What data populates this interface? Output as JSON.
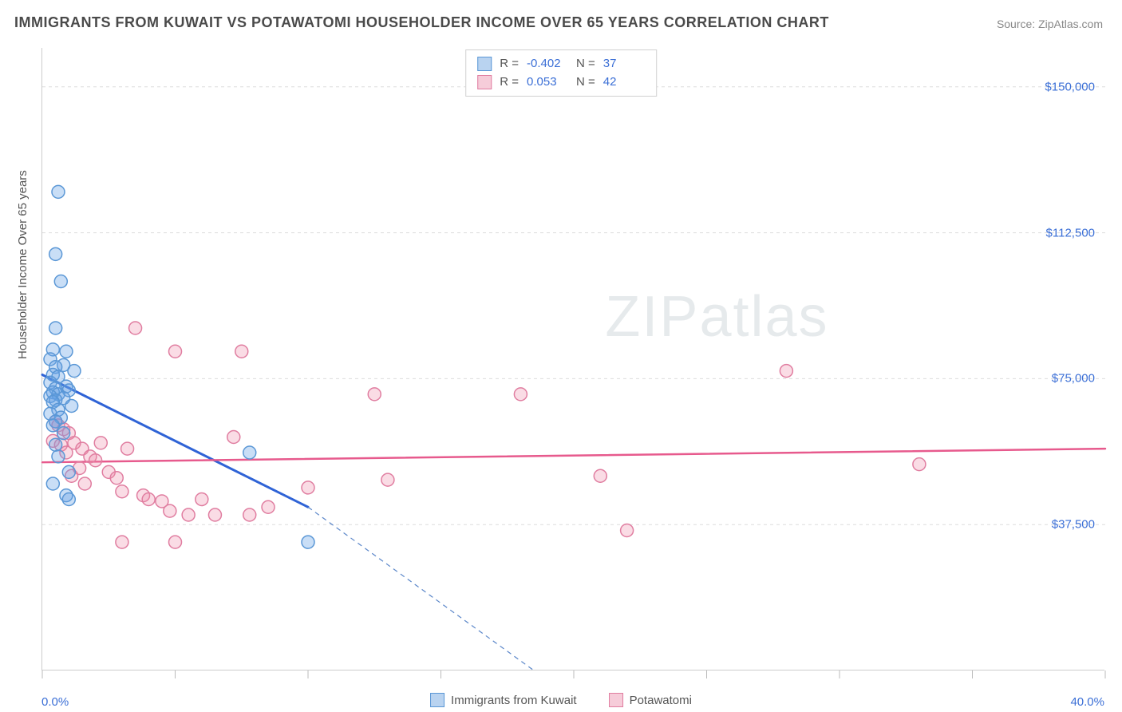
{
  "title": "IMMIGRANTS FROM KUWAIT VS POTAWATOMI HOUSEHOLDER INCOME OVER 65 YEARS CORRELATION CHART",
  "source": "Source: ZipAtlas.com",
  "ylabel": "Householder Income Over 65 years",
  "watermark": {
    "bold": "ZIP",
    "thin": "atlas"
  },
  "chart": {
    "type": "scatter",
    "xlim": [
      0,
      40
    ],
    "ylim": [
      0,
      160000
    ],
    "x_tick_positions": [
      0,
      5,
      10,
      15,
      20,
      25,
      30,
      35,
      40
    ],
    "x_tick_labels_shown": {
      "first": "0.0%",
      "last": "40.0%"
    },
    "y_ticks": [
      {
        "value": 37500,
        "label": "$37,500"
      },
      {
        "value": 75000,
        "label": "$75,000"
      },
      {
        "value": 112500,
        "label": "$112,500"
      },
      {
        "value": 150000,
        "label": "$150,000"
      }
    ],
    "background_color": "#ffffff",
    "grid_color": "#dddddd",
    "marker_radius": 8,
    "marker_stroke_width": 1.5,
    "series": [
      {
        "name": "Immigrants from Kuwait",
        "color_fill": "rgba(100,160,230,0.35)",
        "color_stroke": "#5a97d6",
        "swatch_fill": "#b9d3f0",
        "swatch_border": "#5a97d6",
        "R": "-0.402",
        "N": "37",
        "trend": {
          "x1": 0,
          "y1": 76000,
          "x2": 10,
          "y2": 42000,
          "stroke": "#2f63d6",
          "width": 3
        },
        "trend_ext": {
          "x1": 10,
          "y1": 42000,
          "x2": 18.5,
          "y2": 0,
          "stroke": "#5a86c9",
          "dash": "6,5",
          "width": 1.2
        },
        "points": [
          [
            0.6,
            123000
          ],
          [
            0.5,
            107000
          ],
          [
            0.7,
            100000
          ],
          [
            0.5,
            88000
          ],
          [
            0.4,
            82500
          ],
          [
            0.9,
            82000
          ],
          [
            0.3,
            80000
          ],
          [
            0.8,
            78500
          ],
          [
            0.5,
            78000
          ],
          [
            1.2,
            77000
          ],
          [
            0.4,
            76000
          ],
          [
            0.6,
            75500
          ],
          [
            0.3,
            74000
          ],
          [
            0.9,
            73000
          ],
          [
            0.5,
            72500
          ],
          [
            1.0,
            72000
          ],
          [
            0.4,
            71500
          ],
          [
            0.6,
            71000
          ],
          [
            0.3,
            70500
          ],
          [
            0.8,
            70000
          ],
          [
            0.5,
            69500
          ],
          [
            0.4,
            69000
          ],
          [
            1.1,
            68000
          ],
          [
            0.6,
            67000
          ],
          [
            0.3,
            66000
          ],
          [
            0.7,
            65000
          ],
          [
            0.5,
            64000
          ],
          [
            0.4,
            63000
          ],
          [
            0.8,
            61000
          ],
          [
            0.5,
            58000
          ],
          [
            0.6,
            55000
          ],
          [
            1.0,
            51000
          ],
          [
            0.4,
            48000
          ],
          [
            0.9,
            45000
          ],
          [
            7.8,
            56000
          ],
          [
            10.0,
            33000
          ],
          [
            1.0,
            44000
          ]
        ]
      },
      {
        "name": "Potawatomi",
        "color_fill": "rgba(240,140,170,0.30)",
        "color_stroke": "#e07da0",
        "swatch_fill": "#f6ccd9",
        "swatch_border": "#e07da0",
        "R": "0.053",
        "N": "42",
        "trend": {
          "x1": 0,
          "y1": 53500,
          "x2": 40,
          "y2": 57000,
          "stroke": "#e75a8d",
          "width": 2.5
        },
        "points": [
          [
            0.5,
            64000
          ],
          [
            0.6,
            63000
          ],
          [
            0.8,
            62000
          ],
          [
            1.0,
            61000
          ],
          [
            0.4,
            59000
          ],
          [
            1.2,
            58500
          ],
          [
            0.7,
            58000
          ],
          [
            1.5,
            57000
          ],
          [
            0.9,
            56000
          ],
          [
            1.8,
            55000
          ],
          [
            2.2,
            58500
          ],
          [
            2.0,
            54000
          ],
          [
            1.4,
            52000
          ],
          [
            2.5,
            51000
          ],
          [
            1.1,
            50000
          ],
          [
            2.8,
            49500
          ],
          [
            1.6,
            48000
          ],
          [
            3.5,
            88000
          ],
          [
            3.2,
            57000
          ],
          [
            3.0,
            46000
          ],
          [
            3.8,
            45000
          ],
          [
            4.0,
            44000
          ],
          [
            4.5,
            43500
          ],
          [
            5.0,
            82000
          ],
          [
            4.8,
            41000
          ],
          [
            5.5,
            40000
          ],
          [
            6.0,
            44000
          ],
          [
            6.5,
            40000
          ],
          [
            7.5,
            82000
          ],
          [
            7.2,
            60000
          ],
          [
            7.8,
            40000
          ],
          [
            8.5,
            42000
          ],
          [
            10.0,
            47000
          ],
          [
            12.5,
            71000
          ],
          [
            13.0,
            49000
          ],
          [
            18.0,
            71000
          ],
          [
            21.0,
            50000
          ],
          [
            22.0,
            36000
          ],
          [
            28.0,
            77000
          ],
          [
            33.0,
            53000
          ],
          [
            3.0,
            33000
          ],
          [
            5.0,
            33000
          ]
        ]
      }
    ],
    "legend_labels": [
      "Immigrants from Kuwait",
      "Potawatomi"
    ]
  }
}
